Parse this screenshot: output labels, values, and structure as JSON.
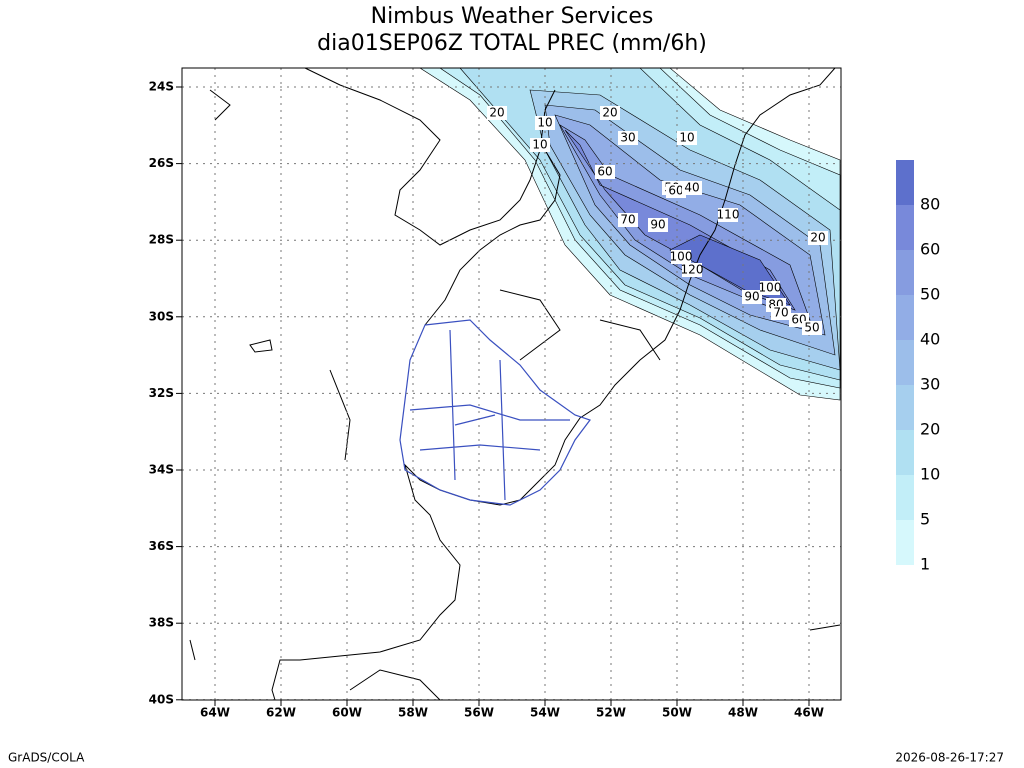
{
  "title": [
    "Nimbus Weather Services",
    "dia01SEP06Z TOTAL PREC (mm/6h)"
  ],
  "lat_labels": [
    "24S",
    "26S",
    "28S",
    "30S",
    "32S",
    "34S",
    "36S",
    "38S",
    "40S"
  ],
  "lon_labels": [
    "64W",
    "62W",
    "60W",
    "58W",
    "56W",
    "54W",
    "52W",
    "50W",
    "48W",
    "46W"
  ],
  "colorbar": {
    "labels": [
      1,
      5,
      10,
      20,
      30,
      40,
      50,
      60,
      80
    ],
    "colors": [
      "#d6f8fc",
      "#c2eef8",
      "#b0e0f2",
      "#a6cfee",
      "#9cbeea",
      "#92ade6",
      "#869ce0",
      "#7889da",
      "#5d70cc"
    ]
  },
  "contour_labels": [
    "20",
    "10",
    "10",
    "20",
    "30",
    "10",
    "60",
    "50",
    "60",
    "40",
    "70",
    "90",
    "110",
    "20",
    "100",
    "120",
    "90",
    "100",
    "80",
    "70",
    "60",
    "50"
  ],
  "footer": {
    "left": "GrADS/COLA",
    "right": "2026-08-26-17:27"
  }
}
